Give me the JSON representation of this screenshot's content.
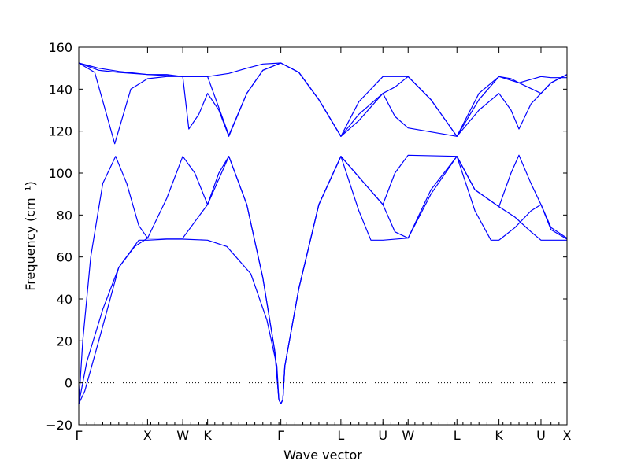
{
  "chart_data": {
    "type": "line",
    "xlabel": "Wave vector",
    "ylabel": "Frequency (cm⁻¹)",
    "ylim": [
      -20,
      160
    ],
    "yticks": [
      -20,
      0,
      20,
      40,
      60,
      80,
      100,
      120,
      140,
      160
    ],
    "reference_line": {
      "y": 0,
      "style": "dotted"
    },
    "line_color": "#0000ff",
    "x_path": {
      "path_coordinate_range": [
        0,
        12.2
      ],
      "labels": [
        {
          "label": "Γ",
          "x": 0
        },
        {
          "label": "X",
          "x": 1.72
        },
        {
          "label": "W",
          "x": 2.6
        },
        {
          "label": "K",
          "x": 3.22
        },
        {
          "label": "Γ",
          "x": 5.05
        },
        {
          "label": "L",
          "x": 6.55
        },
        {
          "label": "U",
          "x": 7.6
        },
        {
          "label": "W",
          "x": 8.23
        },
        {
          "label": "L",
          "x": 9.45
        },
        {
          "label": "K",
          "x": 10.5
        },
        {
          "label": "U",
          "x": 11.55
        },
        {
          "label": "X",
          "x": 12.2
        }
      ]
    },
    "series": [
      {
        "points": [
          [
            0,
            -10
          ],
          [
            0.15,
            -4
          ],
          [
            0.5,
            20
          ],
          [
            1.0,
            55
          ],
          [
            1.5,
            68
          ],
          [
            1.72,
            68
          ],
          [
            2.2,
            68.5
          ],
          [
            2.6,
            68.5
          ],
          [
            3.22,
            68
          ],
          [
            3.7,
            65
          ],
          [
            4.3,
            52
          ],
          [
            4.7,
            30
          ],
          [
            4.95,
            8
          ],
          [
            5.0,
            -8
          ],
          [
            5.05,
            -10
          ],
          [
            5.1,
            -8
          ],
          [
            5.15,
            8
          ],
          [
            5.5,
            45
          ],
          [
            6.0,
            85
          ],
          [
            6.55,
            108
          ],
          [
            7.0,
            82
          ],
          [
            7.3,
            68
          ],
          [
            7.6,
            68
          ],
          [
            8.23,
            69
          ],
          [
            8.8,
            90
          ],
          [
            9.45,
            108
          ],
          [
            9.9,
            82
          ],
          [
            10.3,
            68
          ],
          [
            10.5,
            68
          ],
          [
            10.9,
            74
          ],
          [
            11.3,
            82
          ],
          [
            11.55,
            85
          ],
          [
            11.8,
            73
          ],
          [
            12.2,
            68.5
          ]
        ]
      },
      {
        "points": [
          [
            0,
            -10
          ],
          [
            0.2,
            10
          ],
          [
            0.6,
            35
          ],
          [
            1.0,
            55
          ],
          [
            1.4,
            65
          ],
          [
            1.72,
            69
          ],
          [
            2.2,
            69
          ],
          [
            2.6,
            69
          ],
          [
            3.22,
            85
          ],
          [
            3.75,
            108
          ],
          [
            4.2,
            85
          ],
          [
            4.6,
            50
          ],
          [
            4.9,
            15
          ],
          [
            5.0,
            -8
          ],
          [
            5.05,
            -10
          ],
          [
            5.1,
            -8
          ],
          [
            5.15,
            8
          ],
          [
            5.5,
            45
          ],
          [
            6.0,
            85
          ],
          [
            6.55,
            108
          ],
          [
            7.05,
            97
          ],
          [
            7.6,
            85
          ],
          [
            7.9,
            72
          ],
          [
            8.23,
            69
          ],
          [
            8.8,
            92
          ],
          [
            9.45,
            108
          ],
          [
            9.9,
            92
          ],
          [
            10.5,
            84
          ],
          [
            10.9,
            79
          ],
          [
            11.3,
            72
          ],
          [
            11.55,
            68
          ],
          [
            11.8,
            68
          ],
          [
            12.2,
            68
          ]
        ]
      },
      {
        "points": [
          [
            0,
            -10
          ],
          [
            0.1,
            20
          ],
          [
            0.3,
            60
          ],
          [
            0.6,
            95
          ],
          [
            0.92,
            108
          ],
          [
            1.2,
            95
          ],
          [
            1.5,
            75
          ],
          [
            1.72,
            69
          ],
          [
            2.2,
            88
          ],
          [
            2.6,
            108
          ],
          [
            2.9,
            100
          ],
          [
            3.22,
            85
          ],
          [
            3.5,
            100
          ],
          [
            3.75,
            108
          ],
          [
            4.2,
            85
          ],
          [
            4.6,
            50
          ],
          [
            4.9,
            15
          ],
          [
            5.0,
            -8
          ],
          [
            5.05,
            -10
          ],
          [
            5.1,
            -8
          ],
          [
            5.15,
            8
          ],
          [
            5.5,
            45
          ],
          [
            6.0,
            85
          ],
          [
            6.55,
            108
          ],
          [
            7.05,
            97
          ],
          [
            7.6,
            85
          ],
          [
            7.9,
            100
          ],
          [
            8.23,
            108.5
          ],
          [
            9.45,
            108
          ],
          [
            9.9,
            92
          ],
          [
            10.5,
            84
          ],
          [
            10.8,
            100
          ],
          [
            11.0,
            108.5
          ],
          [
            11.3,
            95
          ],
          [
            11.55,
            85
          ],
          [
            11.8,
            74
          ],
          [
            12.2,
            69
          ]
        ]
      },
      {
        "points": [
          [
            0,
            152.5
          ],
          [
            0.4,
            148
          ],
          [
            0.9,
            114
          ],
          [
            1.3,
            140
          ],
          [
            1.72,
            145
          ],
          [
            2.2,
            146
          ],
          [
            2.6,
            146
          ],
          [
            3.22,
            146
          ],
          [
            3.75,
            118
          ],
          [
            4.2,
            138
          ],
          [
            4.6,
            149
          ],
          [
            5.05,
            152.5
          ],
          [
            5.5,
            148
          ],
          [
            6.0,
            135
          ],
          [
            6.55,
            117.5
          ],
          [
            7.0,
            128
          ],
          [
            7.6,
            138
          ],
          [
            7.9,
            127
          ],
          [
            8.23,
            121.5
          ],
          [
            9.45,
            117.5
          ],
          [
            10.0,
            130
          ],
          [
            10.5,
            138
          ],
          [
            10.8,
            130
          ],
          [
            11.0,
            121
          ],
          [
            11.3,
            133
          ],
          [
            11.55,
            138
          ],
          [
            11.8,
            143
          ],
          [
            12.2,
            147
          ]
        ]
      },
      {
        "points": [
          [
            0,
            152.5
          ],
          [
            0.5,
            149
          ],
          [
            1.0,
            148
          ],
          [
            1.72,
            147
          ],
          [
            2.2,
            146.5
          ],
          [
            2.6,
            146
          ],
          [
            3.22,
            146
          ],
          [
            3.75,
            147.5
          ],
          [
            4.2,
            150
          ],
          [
            4.6,
            152
          ],
          [
            5.05,
            152.5
          ],
          [
            5.5,
            148
          ],
          [
            6.0,
            135
          ],
          [
            6.55,
            117.5
          ],
          [
            7.0,
            125
          ],
          [
            7.6,
            138
          ],
          [
            7.9,
            141
          ],
          [
            8.23,
            146
          ],
          [
            8.8,
            135
          ],
          [
            9.45,
            117.5
          ],
          [
            10.0,
            135
          ],
          [
            10.5,
            146
          ],
          [
            10.8,
            145
          ],
          [
            11.0,
            143
          ],
          [
            11.55,
            138
          ],
          [
            11.8,
            143
          ],
          [
            12.2,
            147
          ]
        ]
      },
      {
        "points": [
          [
            0,
            152.5
          ],
          [
            0.5,
            150
          ],
          [
            1.0,
            148.5
          ],
          [
            1.72,
            147
          ],
          [
            2.2,
            147
          ],
          [
            2.6,
            146
          ],
          [
            2.75,
            121
          ],
          [
            3.0,
            128
          ],
          [
            3.22,
            138
          ],
          [
            3.5,
            130
          ],
          [
            3.75,
            117.5
          ],
          [
            4.2,
            138
          ],
          [
            4.6,
            149
          ],
          [
            5.05,
            152.5
          ],
          [
            5.5,
            148
          ],
          [
            6.0,
            135
          ],
          [
            6.55,
            117.5
          ],
          [
            7.0,
            134
          ],
          [
            7.6,
            146
          ],
          [
            8.23,
            146
          ],
          [
            8.8,
            135
          ],
          [
            9.45,
            117.5
          ],
          [
            10.0,
            138
          ],
          [
            10.5,
            146
          ],
          [
            11.0,
            143
          ],
          [
            11.55,
            146
          ],
          [
            11.8,
            145.5
          ],
          [
            12.2,
            145.5
          ]
        ]
      }
    ]
  }
}
